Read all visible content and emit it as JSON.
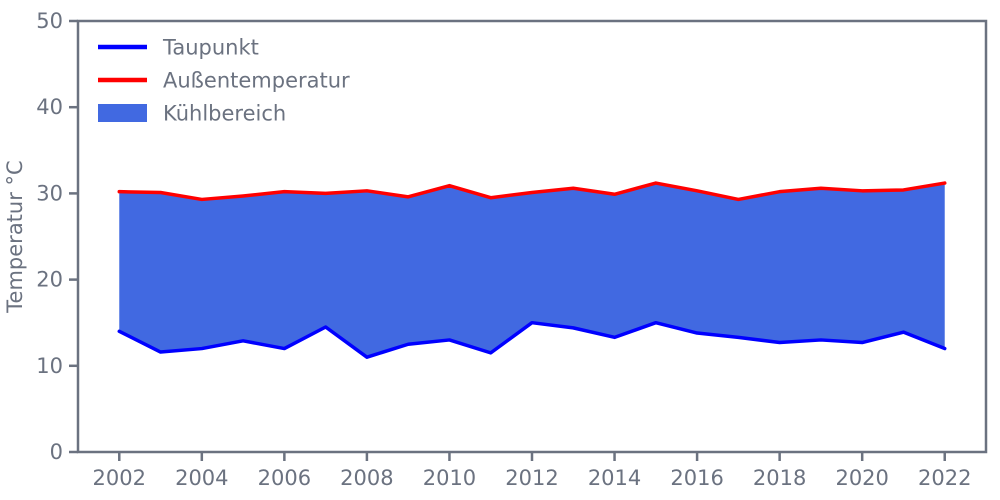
{
  "chart_data": {
    "type": "area",
    "title": "",
    "xlabel": "",
    "ylabel": "Temperatur °C",
    "xlim": [
      2001,
      2023
    ],
    "ylim": [
      0,
      50
    ],
    "x_ticks": [
      2002,
      2004,
      2006,
      2008,
      2010,
      2012,
      2014,
      2016,
      2018,
      2020,
      2022
    ],
    "y_ticks": [
      0,
      10,
      20,
      30,
      40,
      50
    ],
    "grid": false,
    "legend_position": "upper-left",
    "x": [
      2002,
      2003,
      2004,
      2005,
      2006,
      2007,
      2008,
      2009,
      2010,
      2011,
      2012,
      2013,
      2014,
      2015,
      2016,
      2017,
      2018,
      2019,
      2020,
      2021,
      2022
    ],
    "series": [
      {
        "name": "Taupunkt",
        "color": "#0000ff",
        "values": [
          14.0,
          11.6,
          12.0,
          12.9,
          12.0,
          14.5,
          11.0,
          12.5,
          13.0,
          11.5,
          15.0,
          14.4,
          13.3,
          15.0,
          13.8,
          13.3,
          12.7,
          13.0,
          12.7,
          13.9,
          12.0
        ]
      },
      {
        "name": "Außentemperatur",
        "color": "#ff0000",
        "values": [
          30.2,
          30.1,
          29.3,
          29.7,
          30.2,
          30.0,
          30.3,
          29.6,
          30.9,
          29.5,
          30.1,
          30.6,
          29.9,
          31.2,
          30.3,
          29.3,
          30.2,
          30.6,
          30.3,
          30.4,
          31.2
        ]
      }
    ],
    "fill_between": {
      "name": "Kühlbereich",
      "color": "#4169e1",
      "lower_series": "Taupunkt",
      "upper_series": "Außentemperatur"
    },
    "legend": [
      {
        "label": "Taupunkt",
        "swatch": "line",
        "color": "#0000ff"
      },
      {
        "label": "Außentemperatur",
        "swatch": "line",
        "color": "#ff0000"
      },
      {
        "label": "Kühlbereich",
        "swatch": "patch",
        "color": "#4169e1"
      }
    ],
    "style": {
      "axis_color": "#6b7280",
      "text_color": "#6b7280",
      "background": "#ffffff",
      "line_width": 3.5,
      "spine_width": 2.5
    }
  }
}
